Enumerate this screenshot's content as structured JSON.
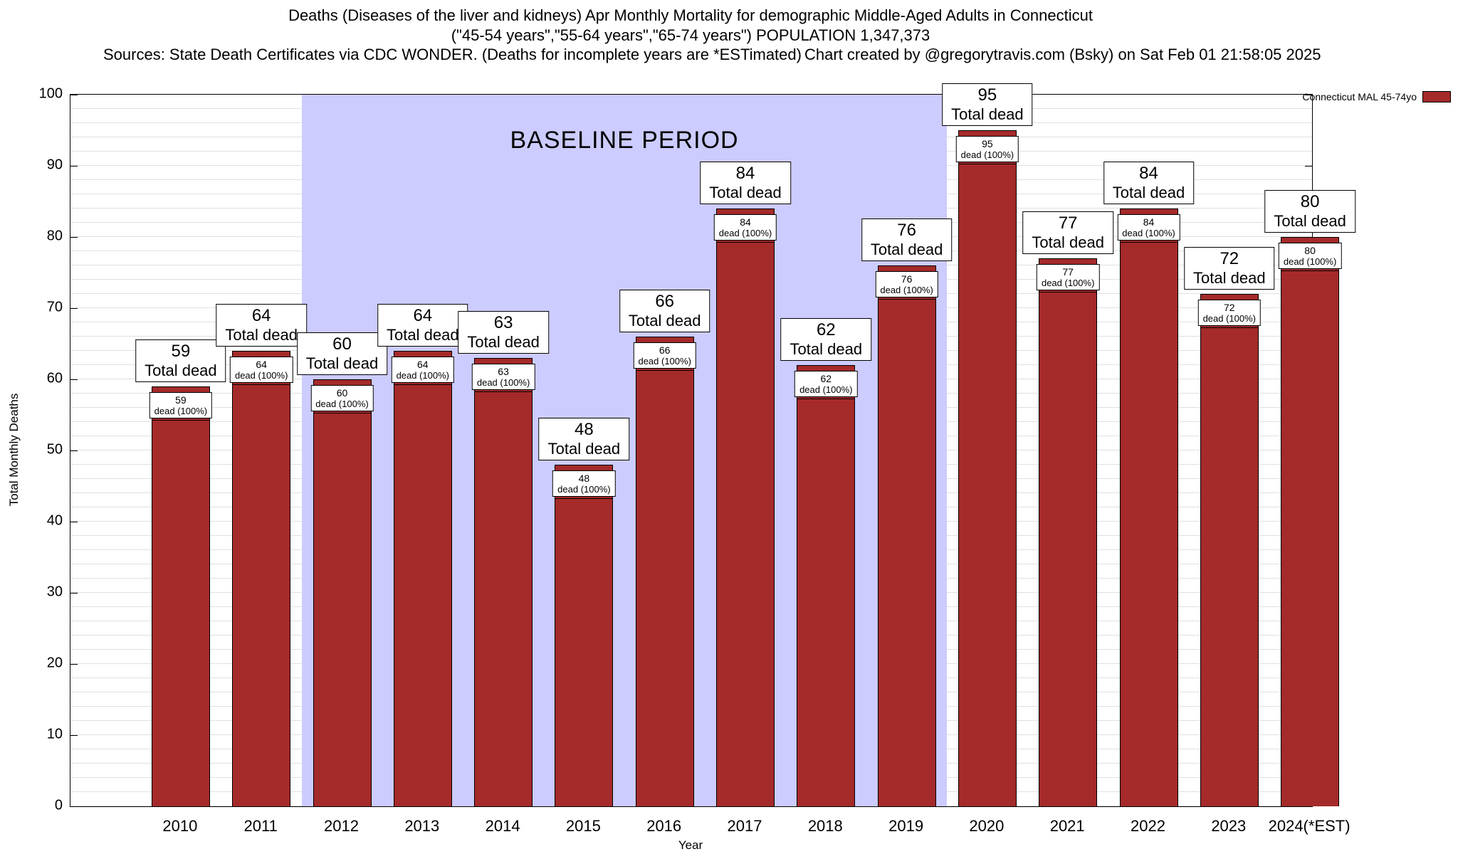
{
  "header": {
    "title_line1": "Deaths (Diseases of the liver and kidneys) Apr Monthly Mortality for demographic Middle-Aged Adults in Connecticut",
    "title_line2": "(\"45-54 years\",\"55-64 years\",\"65-74 years\") POPULATION 1,347,373",
    "sources": "Sources: State Death Certificates via CDC WONDER. (Deaths for incomplete years are *ESTimated)",
    "credit": "Chart created by @gregorytravis.com (Bsky) on Sat Feb 01 21:58:05 2025"
  },
  "legend": {
    "label": "Connecticut MAL 45-74yo",
    "swatch_color": "#A52A2A"
  },
  "chart_data": {
    "type": "bar",
    "title": "Deaths (Diseases of the liver and kidneys) Apr Monthly Mortality for demographic Middle-Aged Adults in Connecticut",
    "subtitle": "(\"45-54 years\",\"55-64 years\",\"65-74 years\") POPULATION 1,347,373",
    "xlabel": "Year",
    "ylabel": "Total Monthly Deaths",
    "ylim": [
      0,
      100
    ],
    "y_ticks": [
      0,
      10,
      20,
      30,
      40,
      50,
      60,
      70,
      80,
      90,
      100
    ],
    "grid": true,
    "minor_grid_step": 2,
    "legend_position": "top-right",
    "bar_color": "#A52A2A",
    "categories": [
      "2010",
      "2011",
      "2012",
      "2013",
      "2014",
      "2015",
      "2016",
      "2017",
      "2018",
      "2019",
      "2020",
      "2021",
      "2022",
      "2023",
      "2024(*EST)"
    ],
    "values": [
      59,
      64,
      60,
      64,
      63,
      48,
      66,
      84,
      62,
      76,
      95,
      77,
      84,
      72,
      80
    ],
    "top_label_suffix": "Total dead",
    "inner_label_suffix": "dead (100%)",
    "baseline": {
      "label": "BASELINE PERIOD",
      "start_category": "2012",
      "end_category": "2019",
      "region_color": "#ccccff"
    }
  }
}
